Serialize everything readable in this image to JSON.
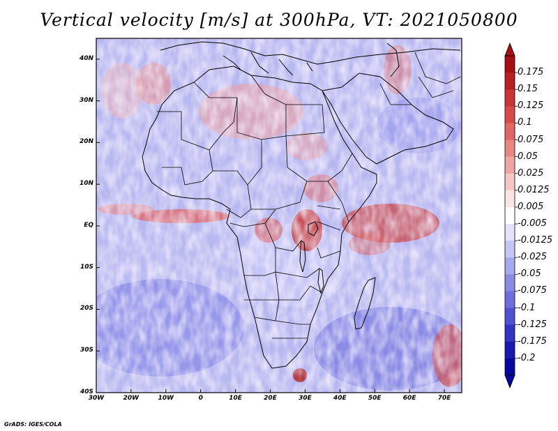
{
  "title": "Vertical velocity [m/s] at 300hPa, VT: 2021050800",
  "footer": "GrADS: IGES/COLA",
  "map": {
    "projection": "lat-lon",
    "lon_range": [
      -30,
      75
    ],
    "lat_range": [
      -40,
      45
    ],
    "x_ticks": [
      {
        "lon": -30,
        "label": "30W"
      },
      {
        "lon": -20,
        "label": "20W"
      },
      {
        "lon": -10,
        "label": "10W"
      },
      {
        "lon": 0,
        "label": "0"
      },
      {
        "lon": 10,
        "label": "10E"
      },
      {
        "lon": 20,
        "label": "20E"
      },
      {
        "lon": 30,
        "label": "30E"
      },
      {
        "lon": 40,
        "label": "40E"
      },
      {
        "lon": 50,
        "label": "50E"
      },
      {
        "lon": 60,
        "label": "60E"
      },
      {
        "lon": 70,
        "label": "70E"
      }
    ],
    "y_ticks": [
      {
        "lat": 40,
        "label": "40N"
      },
      {
        "lat": 30,
        "label": "30N"
      },
      {
        "lat": 20,
        "label": "20N"
      },
      {
        "lat": 10,
        "label": "10N"
      },
      {
        "lat": 0,
        "label": "EQ"
      },
      {
        "lat": -10,
        "label": "10S"
      },
      {
        "lat": -20,
        "label": "20S"
      },
      {
        "lat": -30,
        "label": "30S"
      },
      {
        "lat": -40,
        "label": "40S"
      }
    ]
  },
  "colorbar": {
    "levels": [
      "0.175",
      "0.15",
      "0.125",
      "0.1",
      "0.075",
      "0.05",
      "0.025",
      "0.0125",
      "0.005",
      "-0.005",
      "-0.0125",
      "-0.025",
      "-0.05",
      "-0.075",
      "-0.1",
      "-0.125",
      "-0.175",
      "-0.2"
    ],
    "colors": [
      "#a50f15",
      "#b81e22",
      "#cb3434",
      "#d84a4a",
      "#e16666",
      "#e98585",
      "#f1a4a4",
      "#f6c5c5",
      "#fbe4e4",
      "#ffffff",
      "#e2e2fa",
      "#c6c6f4",
      "#a8a8ee",
      "#8b8be6",
      "#6e6edd",
      "#5050d2",
      "#3333c4",
      "#1818b2",
      "#0808a0"
    ]
  },
  "colors": {
    "positive_strong": "#c0392b",
    "negative_strong": "#3b3bd0",
    "coastline": "#000000"
  }
}
